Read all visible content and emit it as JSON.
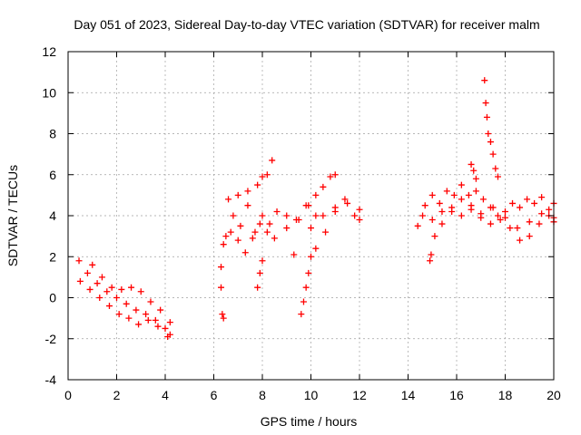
{
  "chart_data": {
    "type": "scatter",
    "title": "Day 051 of 2023, Sidereal Day-to-day VTEC variation (SDTVAR) for receiver malm",
    "xlabel": "GPS time / hours",
    "ylabel": "SDTVAR / TECUs",
    "xlim": [
      0,
      20
    ],
    "ylim": [
      -4,
      12
    ],
    "xticks": [
      0,
      2,
      4,
      6,
      8,
      10,
      12,
      14,
      16,
      18,
      20
    ],
    "yticks": [
      -4,
      -2,
      0,
      2,
      4,
      6,
      8,
      10,
      12
    ],
    "grid": true,
    "marker": "+",
    "series": [
      {
        "name": "SDTVAR",
        "color": "#ff0000",
        "segments": [
          {
            "x": [
              0.45,
              0.8,
              1.2,
              1.6,
              2.0,
              2.4,
              2.8,
              3.2,
              3.6,
              4.0,
              4.2
            ],
            "y": [
              1.8,
              1.2,
              0.7,
              0.3,
              0.0,
              -0.3,
              -0.6,
              -0.8,
              -1.1,
              -1.5,
              -1.8
            ]
          },
          {
            "x": [
              0.5,
              0.9,
              1.3,
              1.7,
              2.1,
              2.5,
              2.9,
              3.3,
              3.7,
              4.1
            ],
            "y": [
              0.8,
              0.4,
              0.0,
              -0.4,
              -0.8,
              -1.0,
              -1.3,
              -1.1,
              -1.4,
              -1.9
            ]
          },
          {
            "x": [
              1.0,
              1.4,
              1.8,
              2.2,
              2.6,
              3.0,
              3.4,
              3.8,
              4.2
            ],
            "y": [
              1.6,
              1.0,
              0.5,
              0.4,
              0.5,
              0.3,
              -0.2,
              -0.6,
              -1.2
            ]
          },
          {
            "x": [
              6.3,
              6.5,
              6.8,
              7.1,
              7.4,
              7.7,
              8.0,
              8.3,
              8.6,
              9.0,
              9.4,
              9.8,
              10.2,
              10.6,
              11.0,
              11.4,
              11.8,
              12.0
            ],
            "y": [
              1.5,
              3.0,
              4.0,
              3.5,
              4.5,
              3.2,
              4.0,
              3.6,
              4.2,
              4.0,
              3.8,
              4.5,
              4.0,
              3.2,
              4.2,
              4.8,
              4.0,
              3.8
            ]
          },
          {
            "x": [
              6.4,
              6.7,
              7.0,
              7.3,
              7.6,
              7.9,
              8.2,
              8.5,
              9.0,
              9.5,
              10.0,
              10.5,
              11.0,
              11.5,
              12.0
            ],
            "y": [
              2.6,
              3.2,
              2.8,
              2.2,
              2.9,
              3.6,
              3.2,
              2.9,
              3.4,
              3.8,
              3.4,
              4.0,
              4.4,
              4.6,
              4.3
            ]
          },
          {
            "x": [
              6.6,
              7.0,
              7.4,
              7.8,
              8.0,
              8.2,
              8.4
            ],
            "y": [
              4.8,
              5.0,
              5.2,
              5.5,
              5.9,
              6.0,
              6.7
            ]
          },
          {
            "x": [
              6.3,
              6.35,
              6.4
            ],
            "y": [
              0.5,
              -0.8,
              -1.0
            ]
          },
          {
            "x": [
              7.8,
              7.9,
              8.0
            ],
            "y": [
              0.5,
              1.2,
              1.8
            ]
          },
          {
            "x": [
              9.3
            ],
            "y": [
              2.1
            ]
          },
          {
            "x": [
              9.6,
              9.7,
              9.8,
              9.9,
              10.0,
              10.2
            ],
            "y": [
              -0.8,
              -0.2,
              0.5,
              1.2,
              2.0,
              2.4
            ]
          },
          {
            "x": [
              9.9,
              10.2,
              10.5,
              10.8,
              11.0
            ],
            "y": [
              4.5,
              5.0,
              5.4,
              5.9,
              6.0
            ]
          },
          {
            "x": [
              14.4,
              14.7,
              15.0,
              15.3,
              15.6,
              15.9,
              16.2,
              16.5,
              16.8,
              17.1,
              17.4,
              17.7,
              18.0,
              18.3,
              18.6,
              18.9,
              19.2,
              19.5,
              19.8,
              20.0
            ],
            "y": [
              3.5,
              4.5,
              5.0,
              4.6,
              5.2,
              5.0,
              5.5,
              5.0,
              5.2,
              4.8,
              4.4,
              4.0,
              4.2,
              4.6,
              4.4,
              4.8,
              4.6,
              4.9,
              4.3,
              4.6
            ]
          },
          {
            "x": [
              14.6,
              15.0,
              15.4,
              15.8,
              16.2,
              16.6,
              17.0,
              17.4,
              17.8,
              18.2,
              18.6,
              19.0,
              19.4,
              19.8,
              20.0
            ],
            "y": [
              4.0,
              3.8,
              4.2,
              4.4,
              4.0,
              4.3,
              3.9,
              3.6,
              3.8,
              3.4,
              2.8,
              3.0,
              3.6,
              4.0,
              3.7
            ]
          },
          {
            "x": [
              15.1,
              15.4,
              15.8,
              16.2,
              16.6,
              17.0,
              17.5,
              18.0,
              18.5,
              19.0,
              19.5,
              20.0
            ],
            "y": [
              3.0,
              3.6,
              4.2,
              4.8,
              4.5,
              4.1,
              4.4,
              3.9,
              3.4,
              3.7,
              4.1,
              3.9
            ]
          },
          {
            "x": [
              14.9,
              14.95
            ],
            "y": [
              1.8,
              2.1
            ]
          },
          {
            "x": [
              17.15,
              17.2,
              17.25,
              17.3,
              17.4,
              17.5,
              17.6,
              17.7
            ],
            "y": [
              10.6,
              9.5,
              8.8,
              8.0,
              7.6,
              7.0,
              6.3,
              5.9
            ]
          },
          {
            "x": [
              16.6,
              16.7,
              16.8
            ],
            "y": [
              6.5,
              6.2,
              5.8
            ]
          }
        ]
      }
    ]
  }
}
